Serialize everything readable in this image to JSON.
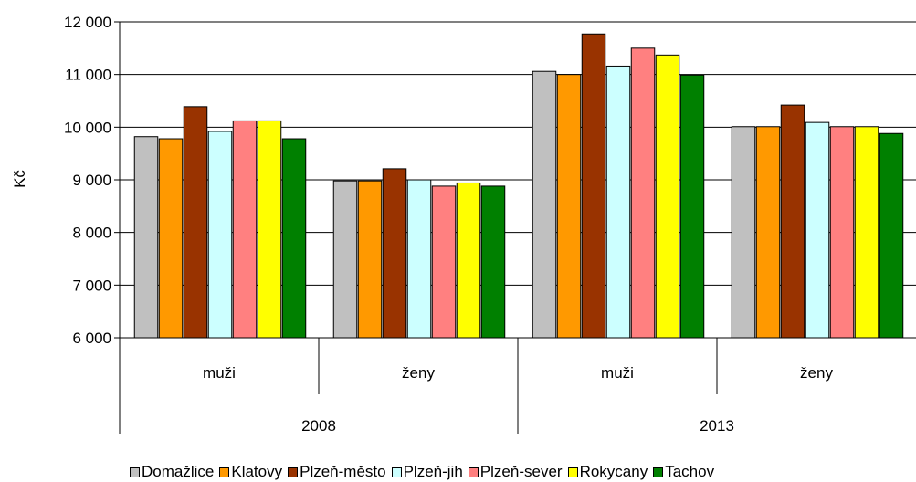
{
  "chart_data": {
    "type": "bar",
    "ylabel": "Kč",
    "ylim": [
      6000,
      12000
    ],
    "yticks": [
      6000,
      7000,
      8000,
      9000,
      10000,
      11000,
      12000
    ],
    "ytick_labels": [
      "6 000",
      "7 000",
      "8 000",
      "9 000",
      "10 000",
      "11 000",
      "12 000"
    ],
    "grid": true,
    "legend_position": "bottom",
    "groups": [
      {
        "label": "2008",
        "categories": [
          "muži",
          "ženy"
        ]
      },
      {
        "label": "2013",
        "categories": [
          "muži",
          "ženy"
        ]
      }
    ],
    "series": [
      {
        "name": "Domažlice",
        "color": "#C0C0C0",
        "values": [
          9820,
          8980,
          11060,
          10010
        ]
      },
      {
        "name": "Klatovy",
        "color": "#FF9900",
        "values": [
          9780,
          8980,
          11000,
          10010
        ]
      },
      {
        "name": "Plzeň-město",
        "color": "#993300",
        "values": [
          10390,
          9210,
          11770,
          10420
        ]
      },
      {
        "name": "Plzeň-jih",
        "color": "#CCFFFF",
        "values": [
          9920,
          9000,
          11160,
          10090
        ]
      },
      {
        "name": "Plzeň-sever",
        "color": "#FF8080",
        "values": [
          10120,
          8880,
          11500,
          10010
        ]
      },
      {
        "name": "Rokycany",
        "color": "#FFFF00",
        "values": [
          10120,
          8940,
          11370,
          10010
        ]
      },
      {
        "name": "Tachov",
        "color": "#008000",
        "values": [
          9780,
          8880,
          10990,
          9880
        ]
      }
    ]
  }
}
